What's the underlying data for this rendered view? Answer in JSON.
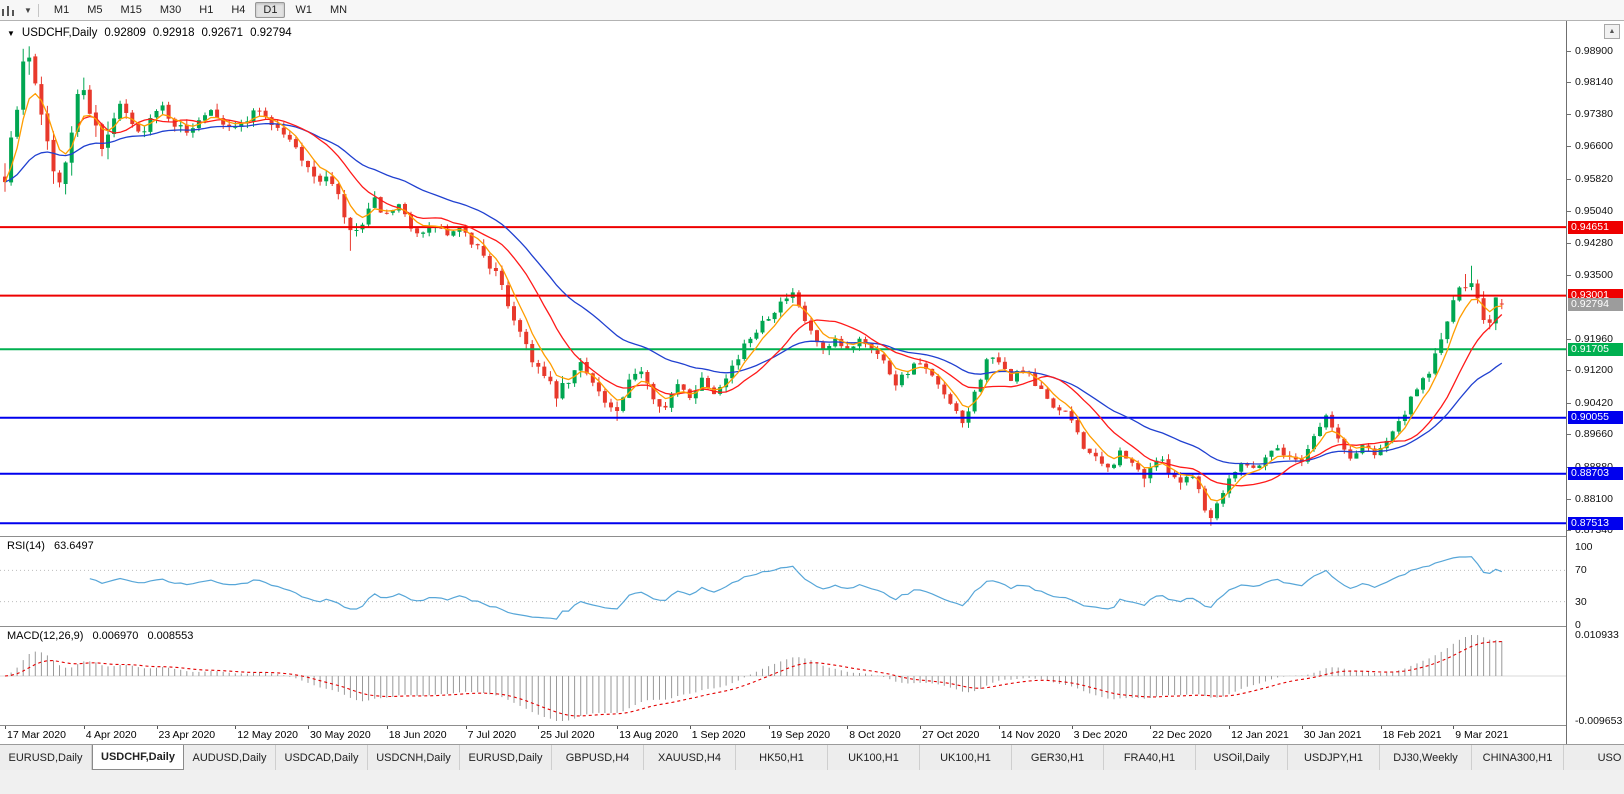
{
  "toolbar": {
    "timeframes": [
      "M1",
      "M5",
      "M15",
      "M30",
      "H1",
      "H4",
      "D1",
      "W1",
      "MN"
    ],
    "active_timeframe": "D1",
    "icons": {
      "chart_type": "candlestick-chart-icon",
      "dropdown": "chevron-down-icon",
      "scroll": "triangle-up-icon"
    }
  },
  "chart": {
    "title": "USDCHF,Daily",
    "ohlc": {
      "open": "0.92809",
      "high": "0.92918",
      "low": "0.92671",
      "close": "0.92794"
    }
  },
  "price_axis": {
    "ticks": [
      "0.98900",
      "0.98140",
      "0.97380",
      "0.96600",
      "0.95820",
      "0.95040",
      "0.94280",
      "0.93500",
      "0.91960",
      "0.91200",
      "0.90420",
      "0.89660",
      "0.88880",
      "0.88100",
      "0.87340"
    ],
    "current_price": {
      "value": "0.92794",
      "background": "#9c9c9c",
      "text_color": "#ffffff"
    }
  },
  "rsi": {
    "label": "RSI(14)",
    "value": "63.6497",
    "axis_ticks": [
      "100",
      "70",
      "30",
      "0"
    ],
    "levels": [
      70,
      30
    ],
    "color": "#57a6d8"
  },
  "macd": {
    "label": "MACD(12,26,9)",
    "value_main": "0.006970",
    "value_signal": "0.008553",
    "axis_max": "0.010933",
    "axis_min": "-0.009653",
    "hist_color": "#9a9a9a",
    "signal_color": "#e30000"
  },
  "date_axis": [
    "17 Mar 2020",
    "4 Apr 2020",
    "23 Apr 2020",
    "12 May 2020",
    "30 May 2020",
    "18 Jun 2020",
    "7 Jul 2020",
    "25 Jul 2020",
    "13 Aug 2020",
    "1 Sep 2020",
    "19 Sep 2020",
    "8 Oct 2020",
    "27 Oct 2020",
    "14 Nov 2020",
    "3 Dec 2020",
    "22 Dec 2020",
    "12 Jan 2021",
    "30 Jan 2021",
    "18 Feb 2021",
    "9 Mar 2021"
  ],
  "tabs": {
    "items": [
      "EURUSD,Daily",
      "USDCHF,Daily",
      "AUDUSD,Daily",
      "USDCAD,Daily",
      "USDCNH,Daily",
      "EURUSD,Daily",
      "GBPUSD,H4",
      "XAUUSD,H4",
      "HK50,H1",
      "UK100,H1",
      "UK100,H1",
      "GER30,H1",
      "FRA40,H1",
      "USOil,Daily",
      "USDJPY,H1",
      "DJ30,Weekly",
      "CHINA300,H1",
      "USO"
    ],
    "active_index": 1
  },
  "chart_data": {
    "type": "candlestick",
    "symbol": "USDCHF",
    "timeframe": "Daily",
    "visible_range": {
      "start": "17 Mar 2020",
      "end": "Mar 2021"
    },
    "y_axis_range": [
      0.8718,
      0.9962
    ],
    "candle_count": 248,
    "last_candle": {
      "open": 0.92809,
      "high": 0.92918,
      "low": 0.92671,
      "close": 0.92794
    },
    "colors": {
      "up": "#00a651",
      "down": "#e8392c"
    },
    "horizontal_lines": [
      {
        "price": 0.94651,
        "color": "#ee0000",
        "label": "0.94651"
      },
      {
        "price": 0.93001,
        "color": "#ee0000",
        "label": "0.93001"
      },
      {
        "price": 0.91705,
        "color": "#00b050",
        "label": "0.91705"
      },
      {
        "price": 0.90055,
        "color": "#0000ee",
        "label": "0.90055"
      },
      {
        "price": 0.88703,
        "color": "#0000ee",
        "label": "0.88703"
      },
      {
        "price": 0.87513,
        "color": "#0000ee",
        "label": "0.87513"
      }
    ],
    "moving_averages": [
      {
        "period": 5,
        "method": "ema",
        "color": "#ff9d00"
      },
      {
        "period": 13,
        "method": "sma",
        "color": "#ff1a1a"
      },
      {
        "period": 30,
        "method": "ema",
        "color": "#2040d0"
      }
    ],
    "indicators": {
      "rsi_period": 14,
      "macd": [
        12,
        26,
        9
      ]
    },
    "price_anchors": [
      [
        0,
        0.96
      ],
      [
        1,
        0.968
      ],
      [
        2,
        0.9745
      ],
      [
        3,
        0.985
      ],
      [
        4,
        0.9885
      ],
      [
        5,
        0.9825
      ],
      [
        6,
        0.9755
      ],
      [
        7,
        0.9695
      ],
      [
        8,
        0.959
      ],
      [
        9,
        0.9555
      ],
      [
        10,
        0.9625
      ],
      [
        11,
        0.97
      ],
      [
        12,
        0.9775
      ],
      [
        13,
        0.9815
      ],
      [
        14,
        0.9755
      ],
      [
        15,
        0.97
      ],
      [
        16,
        0.9645
      ],
      [
        17,
        0.968
      ],
      [
        18,
        0.9725
      ],
      [
        19,
        0.9755
      ],
      [
        20,
        0.9735
      ],
      [
        22,
        0.969
      ],
      [
        24,
        0.9725
      ],
      [
        26,
        0.9755
      ],
      [
        28,
        0.9715
      ],
      [
        30,
        0.969
      ],
      [
        32,
        0.973
      ],
      [
        34,
        0.9755
      ],
      [
        36,
        0.972
      ],
      [
        38,
        0.97
      ],
      [
        40,
        0.973
      ],
      [
        42,
        0.975
      ],
      [
        44,
        0.9715
      ],
      [
        46,
        0.969
      ],
      [
        48,
        0.9655
      ],
      [
        50,
        0.9615
      ],
      [
        51,
        0.9575
      ],
      [
        53,
        0.959
      ],
      [
        55,
        0.9535
      ],
      [
        57,
        0.9445
      ],
      [
        59,
        0.947
      ],
      [
        61,
        0.9525
      ],
      [
        63,
        0.949
      ],
      [
        65,
        0.951
      ],
      [
        67,
        0.947
      ],
      [
        69,
        0.9445
      ],
      [
        71,
        0.947
      ],
      [
        73,
        0.9445
      ],
      [
        75,
        0.9455
      ],
      [
        77,
        0.943
      ],
      [
        79,
        0.94
      ],
      [
        81,
        0.935
      ],
      [
        83,
        0.928
      ],
      [
        85,
        0.9215
      ],
      [
        87,
        0.915
      ],
      [
        89,
        0.91
      ],
      [
        91,
        0.906
      ],
      [
        93,
        0.909
      ],
      [
        95,
        0.9135
      ],
      [
        97,
        0.91
      ],
      [
        99,
        0.904
      ],
      [
        101,
        0.9015
      ],
      [
        103,
        0.9085
      ],
      [
        105,
        0.9125
      ],
      [
        107,
        0.906
      ],
      [
        109,
        0.903
      ],
      [
        111,
        0.908
      ],
      [
        113,
        0.906
      ],
      [
        115,
        0.91
      ],
      [
        117,
        0.907
      ],
      [
        119,
        0.911
      ],
      [
        121,
        0.915
      ],
      [
        123,
        0.92
      ],
      [
        125,
        0.924
      ],
      [
        127,
        0.9268
      ],
      [
        129,
        0.9293
      ],
      [
        130,
        0.9298
      ],
      [
        131,
        0.9268
      ],
      [
        133,
        0.921
      ],
      [
        135,
        0.916
      ],
      [
        137,
        0.9185
      ],
      [
        139,
        0.9168
      ],
      [
        141,
        0.92
      ],
      [
        143,
        0.9178
      ],
      [
        145,
        0.914
      ],
      [
        147,
        0.9092
      ],
      [
        149,
        0.912
      ],
      [
        151,
        0.9135
      ],
      [
        153,
        0.91
      ],
      [
        155,
        0.9058
      ],
      [
        157,
        0.9012
      ],
      [
        158,
        0.899
      ],
      [
        160,
        0.9062
      ],
      [
        162,
        0.915
      ],
      [
        164,
        0.9132
      ],
      [
        166,
        0.9102
      ],
      [
        168,
        0.9122
      ],
      [
        170,
        0.9082
      ],
      [
        172,
        0.9052
      ],
      [
        174,
        0.9022
      ],
      [
        176,
        0.9
      ],
      [
        178,
        0.894
      ],
      [
        180,
        0.8902
      ],
      [
        182,
        0.888
      ],
      [
        184,
        0.892
      ],
      [
        186,
        0.8892
      ],
      [
        188,
        0.8866
      ],
      [
        190,
        0.8906
      ],
      [
        192,
        0.8882
      ],
      [
        194,
        0.8852
      ],
      [
        196,
        0.8872
      ],
      [
        198,
        0.8792
      ],
      [
        199,
        0.8762
      ],
      [
        200,
        0.88
      ],
      [
        202,
        0.8862
      ],
      [
        204,
        0.89
      ],
      [
        206,
        0.8882
      ],
      [
        208,
        0.8912
      ],
      [
        210,
        0.8936
      ],
      [
        212,
        0.8906
      ],
      [
        214,
        0.8906
      ],
      [
        216,
        0.8962
      ],
      [
        218,
        0.901
      ],
      [
        220,
        0.8952
      ],
      [
        222,
        0.8906
      ],
      [
        224,
        0.894
      ],
      [
        226,
        0.8922
      ],
      [
        228,
        0.8952
      ],
      [
        230,
        0.8992
      ],
      [
        232,
        0.9042
      ],
      [
        234,
        0.9092
      ],
      [
        236,
        0.9152
      ],
      [
        238,
        0.9242
      ],
      [
        240,
        0.9312
      ],
      [
        242,
        0.9338
      ],
      [
        243,
        0.9302
      ],
      [
        244,
        0.9252
      ],
      [
        245,
        0.9232
      ],
      [
        246,
        0.9288
      ],
      [
        247,
        0.9279
      ]
    ],
    "volatility_segments": [
      [
        0,
        18,
        0.006
      ],
      [
        18,
        50,
        0.0026
      ],
      [
        50,
        62,
        0.0032
      ],
      [
        62,
        78,
        0.0024
      ],
      [
        78,
        96,
        0.0032
      ],
      [
        96,
        116,
        0.0028
      ],
      [
        116,
        132,
        0.0024
      ],
      [
        132,
        162,
        0.0024
      ],
      [
        162,
        200,
        0.0024
      ],
      [
        200,
        232,
        0.002
      ],
      [
        232,
        248,
        0.0032
      ]
    ],
    "wick_overrides": [
      [
        3,
        "high",
        0.9895
      ],
      [
        4,
        "high",
        0.9901
      ],
      [
        57,
        "low",
        0.9408
      ],
      [
        91,
        "low",
        0.9032
      ],
      [
        101,
        "low",
        0.8998
      ],
      [
        130,
        "high",
        0.9318
      ],
      [
        158,
        "low",
        0.8982
      ],
      [
        188,
        "low",
        0.8838
      ],
      [
        194,
        "low",
        0.8832
      ],
      [
        199,
        "low",
        0.8745
      ],
      [
        241,
        "high",
        0.9352
      ],
      [
        242,
        "high",
        0.9372
      ]
    ]
  }
}
